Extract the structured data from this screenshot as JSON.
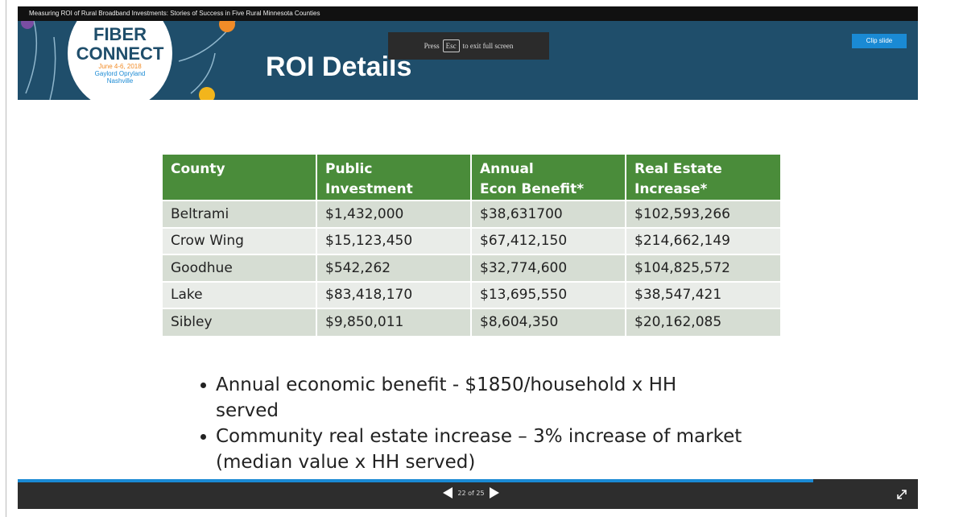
{
  "viewer": {
    "presentation_title": "Measuring ROI of Rural Broadband Investments: Stories of Success in Five Rural Minnesota Counties",
    "fullscreen_notice": {
      "press": "Press",
      "key": "Esc",
      "rest": "to exit full screen"
    },
    "clip_button": "Clip slide",
    "pager": "22 of 25"
  },
  "header": {
    "logo": {
      "line1": "FIBER",
      "line2": "CONNECT",
      "dates": "June 4-6, 2018",
      "venue": "Gaylord Opryland",
      "city": "Nashville"
    },
    "title": "ROI Details"
  },
  "table": {
    "columns": [
      [
        "County"
      ],
      [
        "Public Investment"
      ],
      [
        "Annual",
        "Econ Benefit*"
      ],
      [
        "Real Estate",
        "Increase*"
      ]
    ],
    "rows": [
      [
        "Beltrami",
        "$1,432,000",
        "$38,631700",
        "$102,593,266"
      ],
      [
        "Crow Wing",
        "$15,123,450",
        "$67,412,150",
        "$214,662,149"
      ],
      [
        "Goodhue",
        "$542,262",
        "$32,774,600",
        "$104,825,572"
      ],
      [
        "Lake",
        "$83,418,170",
        "$13,695,550",
        "$38,547,421"
      ],
      [
        "Sibley",
        "$9,850,011",
        "$8,604,350",
        "$20,162,085"
      ]
    ]
  },
  "bullets": [
    [
      "Annual economic benefit - $1850/household x HH",
      "served"
    ],
    [
      "Community real estate increase – 3% increase of market",
      "(median value x HH served)"
    ]
  ]
}
